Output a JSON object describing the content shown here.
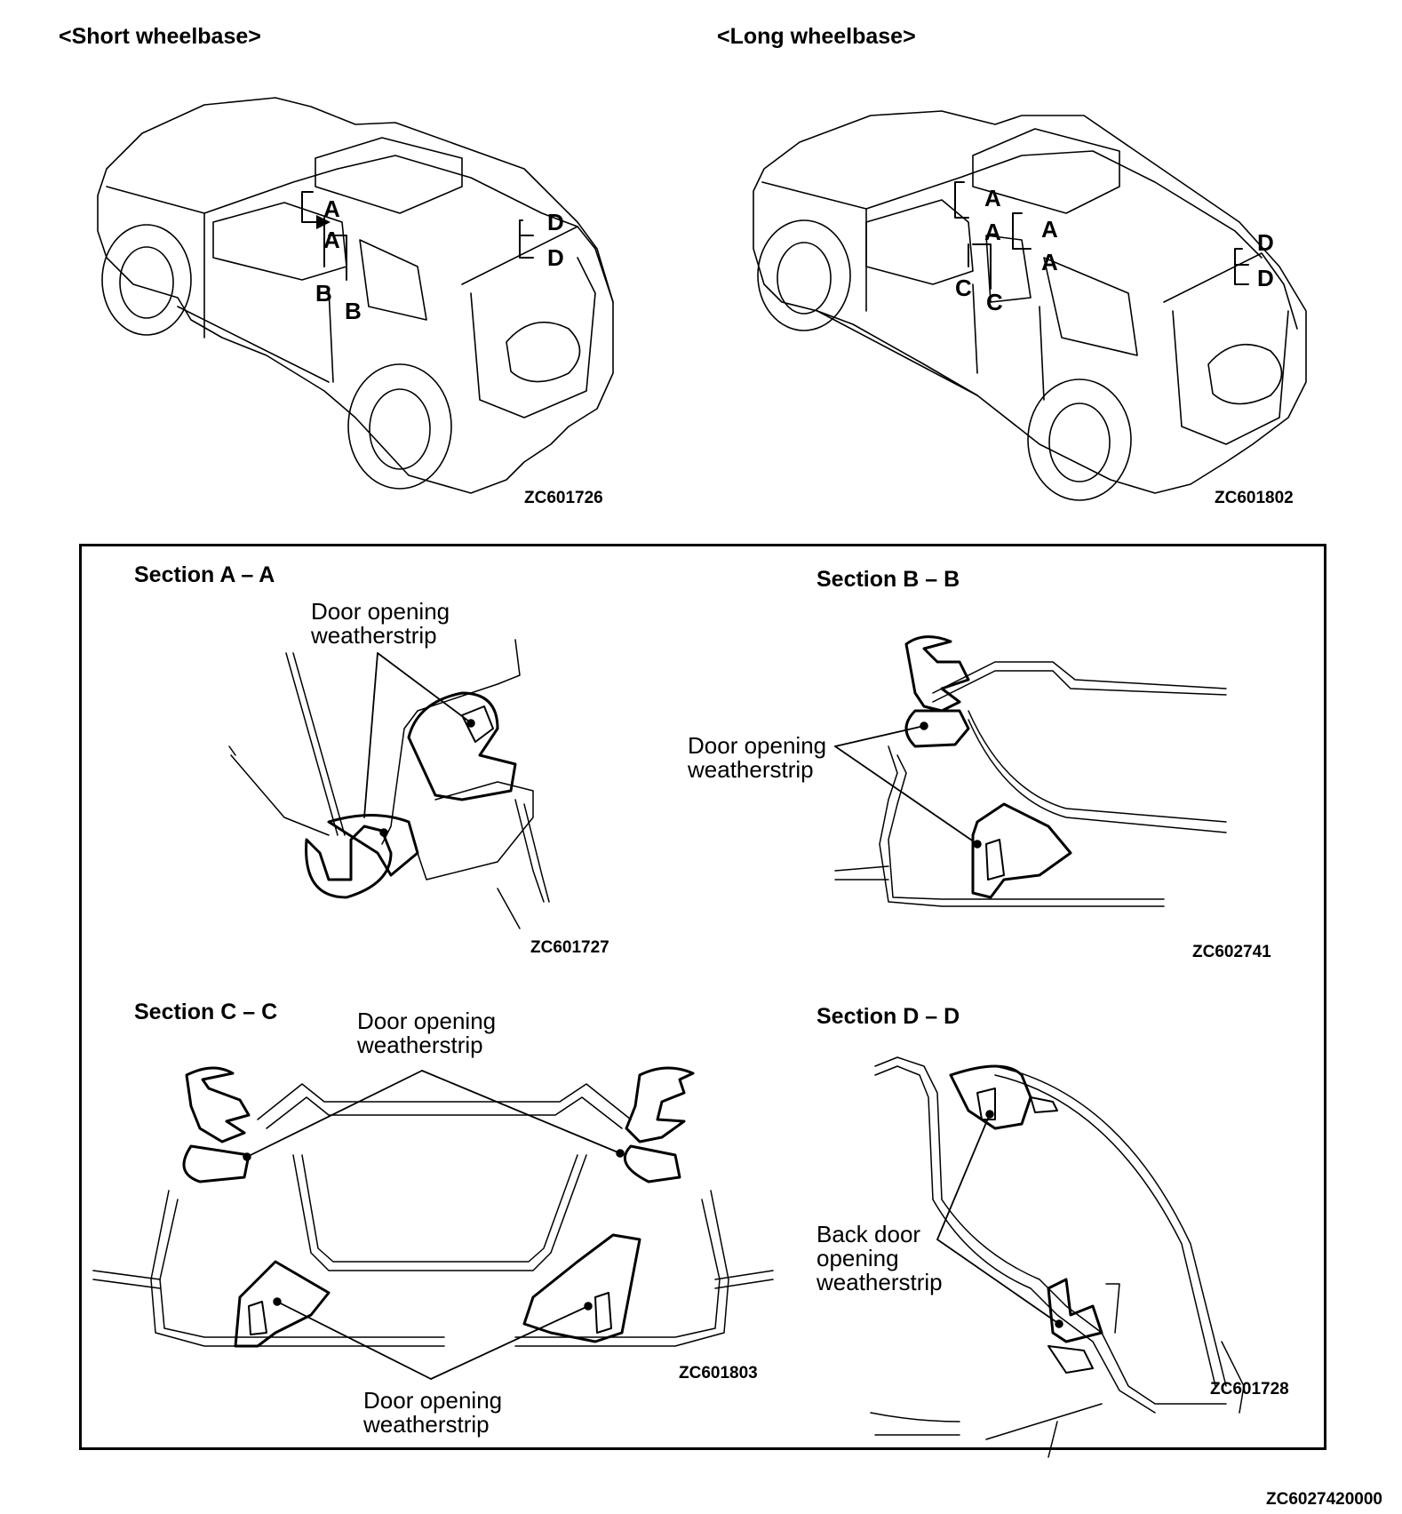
{
  "header": {
    "short_title": "<Short wheelbase>",
    "long_title": "<Long wheelbase>"
  },
  "vehicles": {
    "short": {
      "image_code": "ZC601726",
      "markers": [
        "A",
        "A",
        "B",
        "B",
        "D",
        "D"
      ]
    },
    "long": {
      "image_code": "ZC601802",
      "markers": [
        "A",
        "A",
        "A",
        "A",
        "C",
        "C",
        "D",
        "D"
      ]
    }
  },
  "sections": {
    "aa": {
      "title": "Section A – A",
      "label": "Door opening weatherstrip",
      "image_code": "ZC601727"
    },
    "bb": {
      "title": "Section B – B",
      "label": "Door opening weatherstrip",
      "image_code": "ZC602741"
    },
    "cc": {
      "title": "Section C – C",
      "label_top": "Door opening weatherstrip",
      "label_bottom": "Door opening weatherstrip",
      "image_code": "ZC601803"
    },
    "dd": {
      "title": "Section D – D",
      "label": "Back door opening weatherstrip",
      "image_code": "ZC601728"
    }
  },
  "footer": {
    "image_code": "ZC6027420000"
  }
}
